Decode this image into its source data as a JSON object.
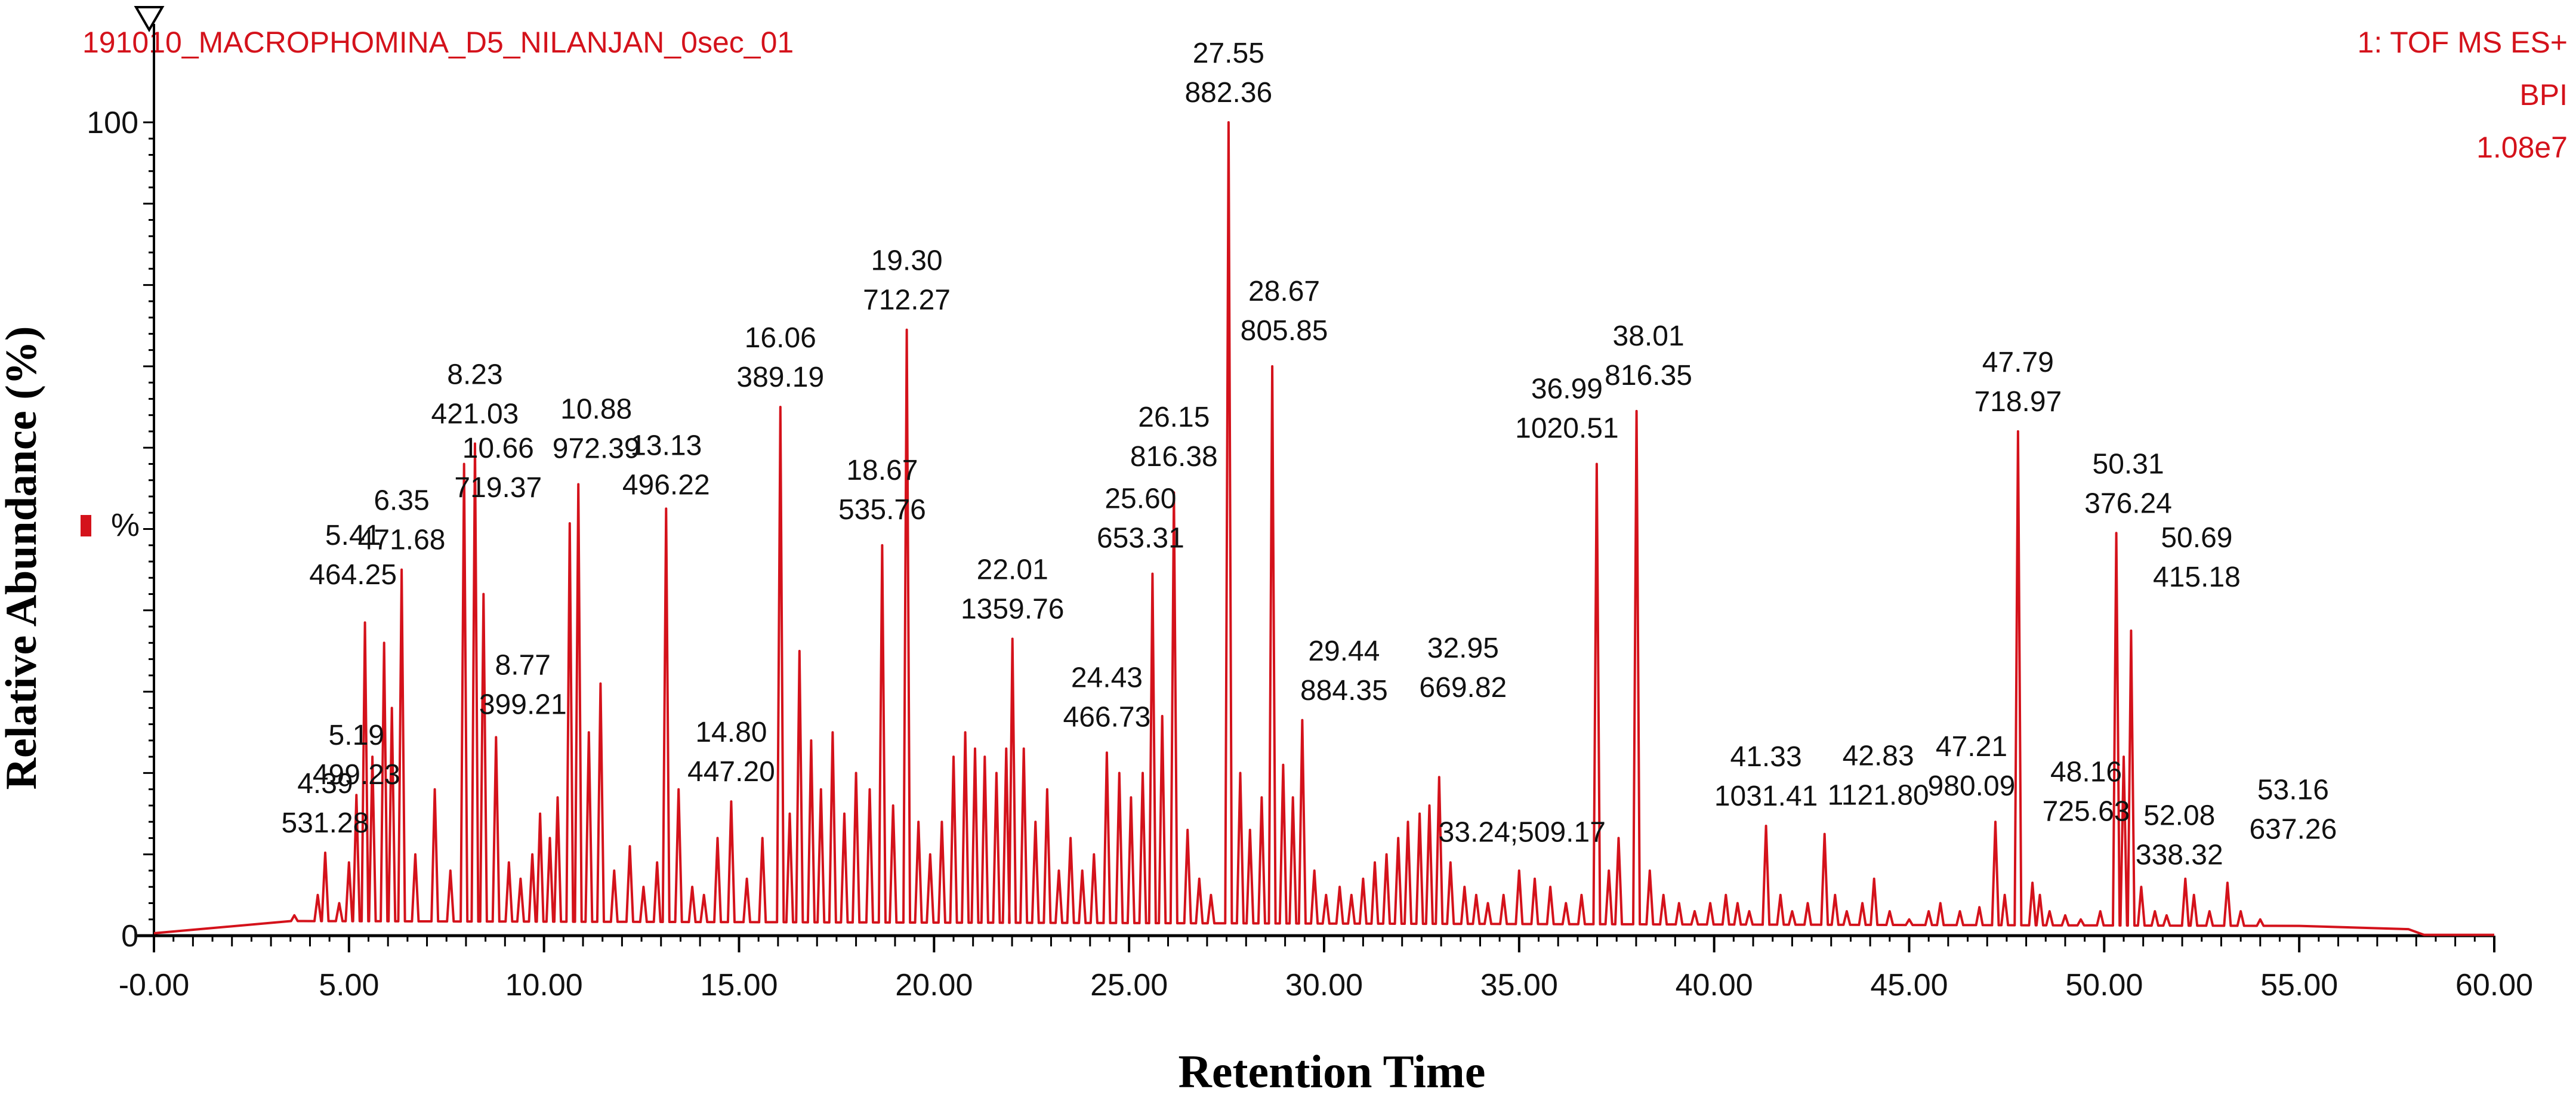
{
  "header": {
    "sample_name": "191010_MACROPHOMINA_D5_NILANJAN_0sec_01",
    "instrument_line": "1: TOF MS ES+",
    "mode_line": "BPI",
    "intensity_line": "1.08e7"
  },
  "axis_marker": {
    "percent_symbol": "%"
  },
  "colors": {
    "trace": "#d4121b",
    "header_text": "#d4121b",
    "axis": "#000000",
    "labels": "#111111"
  },
  "chart_data": {
    "type": "line",
    "title": "",
    "xlabel": "Retention Time",
    "ylabel": "Relative Abundance (%)",
    "xlim": [
      -0.5,
      60
    ],
    "ylim": [
      0,
      100
    ],
    "x_ticks": [
      "-0.00",
      "5.00",
      "10.00",
      "15.00",
      "20.00",
      "25.00",
      "30.00",
      "35.00",
      "40.00",
      "45.00",
      "50.00",
      "55.00",
      "60.00"
    ],
    "x_tick_values": [
      0,
      5,
      10,
      15,
      20,
      25,
      30,
      35,
      40,
      45,
      50,
      55,
      60
    ],
    "y_ticks": [
      "0",
      "100"
    ],
    "y_tick_values": [
      0,
      100
    ],
    "grid": false,
    "legend": "none",
    "baseline": [
      [
        0,
        0.3
      ],
      [
        2.8,
        0.5
      ],
      [
        3.3,
        1.5
      ],
      [
        3.6,
        1.8
      ],
      [
        55,
        1.2
      ],
      [
        57.8,
        0.8
      ],
      [
        58.2,
        0.1
      ],
      [
        60,
        0.1
      ]
    ],
    "peaks": [
      {
        "rt": 4.39,
        "mz": "531.28",
        "y": 10.2,
        "label": true
      },
      {
        "rt": 5.19,
        "mz": "499.23",
        "y": 17.3,
        "label": true
      },
      {
        "rt": 5.41,
        "mz": "464.25",
        "y": 38.5,
        "label": true
      },
      {
        "rt": 6.35,
        "mz": "471.68",
        "y": 45.0,
        "label": true
      },
      {
        "rt": 8.23,
        "mz": "421.03",
        "y": 60.5,
        "label": true
      },
      {
        "rt": 8.77,
        "mz": "399.21",
        "y": 24.4,
        "label": true
      },
      {
        "rt": 10.66,
        "mz": "719.37",
        "y": 50.7,
        "label": true
      },
      {
        "rt": 10.88,
        "mz": "972.39",
        "y": 55.5,
        "label": true
      },
      {
        "rt": 13.13,
        "mz": "496.22",
        "y": 52.5,
        "label": true
      },
      {
        "rt": 14.8,
        "mz": "447.20",
        "y": 16.5,
        "label": true
      },
      {
        "rt": 16.06,
        "mz": "389.19",
        "y": 65.0,
        "label": true
      },
      {
        "rt": 18.67,
        "mz": "535.76",
        "y": 48.0,
        "label": true
      },
      {
        "rt": 19.3,
        "mz": "712.27",
        "y": 74.5,
        "label": true
      },
      {
        "rt": 22.01,
        "mz": "1359.76",
        "y": 36.5,
        "label": true
      },
      {
        "rt": 24.43,
        "mz": "466.73",
        "y": 22.5,
        "label": true
      },
      {
        "rt": 25.6,
        "mz": "653.31",
        "y": 44.5,
        "label": true
      },
      {
        "rt": 26.15,
        "mz": "816.38",
        "y": 54.5,
        "label": true
      },
      {
        "rt": 27.55,
        "mz": "882.36",
        "y": 100.0,
        "label": true
      },
      {
        "rt": 28.67,
        "mz": "805.85",
        "y": 70.0,
        "label": true
      },
      {
        "rt": 29.44,
        "mz": "884.35",
        "y": 26.5,
        "label": true
      },
      {
        "rt": 32.95,
        "mz": "669.82",
        "y": 19.5,
        "label": true
      },
      {
        "rt": 33.24,
        "mz": "509.17",
        "y": 9.0,
        "label": true
      },
      {
        "rt": 36.99,
        "mz": "1020.51",
        "y": 58.0,
        "label": true
      },
      {
        "rt": 38.01,
        "mz": "816.35",
        "y": 64.5,
        "label": true
      },
      {
        "rt": 41.33,
        "mz": "1031.41",
        "y": 13.5,
        "label": true
      },
      {
        "rt": 42.83,
        "mz": "1121.80",
        "y": 12.5,
        "label": true
      },
      {
        "rt": 47.21,
        "mz": "980.09",
        "y": 14.0,
        "label": true
      },
      {
        "rt": 47.79,
        "mz": "718.97",
        "y": 62.0,
        "label": true
      },
      {
        "rt": 48.16,
        "mz": "725.63",
        "y": 6.5,
        "label": true
      },
      {
        "rt": 50.31,
        "mz": "376.24",
        "y": 49.5,
        "label": true
      },
      {
        "rt": 50.69,
        "mz": "415.18",
        "y": 37.5,
        "label": true
      },
      {
        "rt": 52.08,
        "mz": "338.32",
        "y": 7.0,
        "label": true
      },
      {
        "rt": 53.16,
        "mz": "637.26",
        "y": 6.5,
        "label": true
      },
      {
        "rt": 3.6,
        "y": 2.5
      },
      {
        "rt": 4.2,
        "y": 5
      },
      {
        "rt": 4.75,
        "y": 4
      },
      {
        "rt": 5.0,
        "y": 9
      },
      {
        "rt": 5.6,
        "y": 22
      },
      {
        "rt": 5.9,
        "y": 36
      },
      {
        "rt": 6.1,
        "y": 28
      },
      {
        "rt": 6.7,
        "y": 10
      },
      {
        "rt": 7.2,
        "y": 18
      },
      {
        "rt": 7.6,
        "y": 8
      },
      {
        "rt": 7.95,
        "y": 58
      },
      {
        "rt": 8.45,
        "y": 42
      },
      {
        "rt": 9.1,
        "y": 9
      },
      {
        "rt": 9.4,
        "y": 7
      },
      {
        "rt": 9.7,
        "y": 10
      },
      {
        "rt": 9.9,
        "y": 15
      },
      {
        "rt": 10.15,
        "y": 12
      },
      {
        "rt": 10.35,
        "y": 17
      },
      {
        "rt": 11.15,
        "y": 25
      },
      {
        "rt": 11.45,
        "y": 31
      },
      {
        "rt": 11.8,
        "y": 8
      },
      {
        "rt": 12.2,
        "y": 11
      },
      {
        "rt": 12.55,
        "y": 6
      },
      {
        "rt": 12.9,
        "y": 9
      },
      {
        "rt": 13.45,
        "y": 18
      },
      {
        "rt": 13.8,
        "y": 6
      },
      {
        "rt": 14.1,
        "y": 5
      },
      {
        "rt": 14.45,
        "y": 12
      },
      {
        "rt": 15.2,
        "y": 7
      },
      {
        "rt": 15.6,
        "y": 12
      },
      {
        "rt": 16.3,
        "y": 15
      },
      {
        "rt": 16.55,
        "y": 35
      },
      {
        "rt": 16.85,
        "y": 24
      },
      {
        "rt": 17.1,
        "y": 18
      },
      {
        "rt": 17.4,
        "y": 25
      },
      {
        "rt": 17.7,
        "y": 15
      },
      {
        "rt": 18.0,
        "y": 20
      },
      {
        "rt": 18.35,
        "y": 18
      },
      {
        "rt": 18.95,
        "y": 16
      },
      {
        "rt": 19.6,
        "y": 14
      },
      {
        "rt": 19.9,
        "y": 10
      },
      {
        "rt": 20.2,
        "y": 14
      },
      {
        "rt": 20.5,
        "y": 22
      },
      {
        "rt": 20.8,
        "y": 25
      },
      {
        "rt": 21.05,
        "y": 23
      },
      {
        "rt": 21.3,
        "y": 22
      },
      {
        "rt": 21.6,
        "y": 20
      },
      {
        "rt": 21.85,
        "y": 23
      },
      {
        "rt": 22.3,
        "y": 23
      },
      {
        "rt": 22.6,
        "y": 14
      },
      {
        "rt": 22.9,
        "y": 18
      },
      {
        "rt": 23.2,
        "y": 8
      },
      {
        "rt": 23.5,
        "y": 12
      },
      {
        "rt": 23.8,
        "y": 8
      },
      {
        "rt": 24.1,
        "y": 10
      },
      {
        "rt": 24.75,
        "y": 20
      },
      {
        "rt": 25.05,
        "y": 17
      },
      {
        "rt": 25.35,
        "y": 20
      },
      {
        "rt": 25.85,
        "y": 27
      },
      {
        "rt": 26.5,
        "y": 13
      },
      {
        "rt": 26.8,
        "y": 7
      },
      {
        "rt": 27.1,
        "y": 5
      },
      {
        "rt": 27.85,
        "y": 20
      },
      {
        "rt": 28.1,
        "y": 13
      },
      {
        "rt": 28.4,
        "y": 17
      },
      {
        "rt": 28.95,
        "y": 21
      },
      {
        "rt": 29.2,
        "y": 17
      },
      {
        "rt": 29.75,
        "y": 8
      },
      {
        "rt": 30.05,
        "y": 5
      },
      {
        "rt": 30.4,
        "y": 6
      },
      {
        "rt": 30.7,
        "y": 5
      },
      {
        "rt": 31.0,
        "y": 7
      },
      {
        "rt": 31.3,
        "y": 9
      },
      {
        "rt": 31.6,
        "y": 10
      },
      {
        "rt": 31.9,
        "y": 12
      },
      {
        "rt": 32.15,
        "y": 14
      },
      {
        "rt": 32.45,
        "y": 15
      },
      {
        "rt": 32.7,
        "y": 16
      },
      {
        "rt": 33.6,
        "y": 6
      },
      {
        "rt": 33.9,
        "y": 5
      },
      {
        "rt": 34.2,
        "y": 4
      },
      {
        "rt": 34.6,
        "y": 5
      },
      {
        "rt": 35.0,
        "y": 8
      },
      {
        "rt": 35.4,
        "y": 7
      },
      {
        "rt": 35.8,
        "y": 6
      },
      {
        "rt": 36.2,
        "y": 4
      },
      {
        "rt": 36.6,
        "y": 5
      },
      {
        "rt": 37.3,
        "y": 8
      },
      {
        "rt": 37.55,
        "y": 12
      },
      {
        "rt": 38.35,
        "y": 8
      },
      {
        "rt": 38.7,
        "y": 5
      },
      {
        "rt": 39.1,
        "y": 4
      },
      {
        "rt": 39.5,
        "y": 3
      },
      {
        "rt": 39.9,
        "y": 4
      },
      {
        "rt": 40.3,
        "y": 5
      },
      {
        "rt": 40.6,
        "y": 4
      },
      {
        "rt": 40.9,
        "y": 3
      },
      {
        "rt": 41.7,
        "y": 5
      },
      {
        "rt": 42.0,
        "y": 3
      },
      {
        "rt": 42.4,
        "y": 4
      },
      {
        "rt": 43.1,
        "y": 5
      },
      {
        "rt": 43.4,
        "y": 3
      },
      {
        "rt": 43.8,
        "y": 4
      },
      {
        "rt": 44.1,
        "y": 7
      },
      {
        "rt": 44.5,
        "y": 3
      },
      {
        "rt": 45.0,
        "y": 2
      },
      {
        "rt": 45.5,
        "y": 3
      },
      {
        "rt": 45.8,
        "y": 4
      },
      {
        "rt": 46.3,
        "y": 3
      },
      {
        "rt": 46.8,
        "y": 3.5
      },
      {
        "rt": 47.45,
        "y": 5
      },
      {
        "rt": 48.35,
        "y": 5
      },
      {
        "rt": 48.6,
        "y": 3
      },
      {
        "rt": 49.0,
        "y": 2.5
      },
      {
        "rt": 49.4,
        "y": 2
      },
      {
        "rt": 49.9,
        "y": 3
      },
      {
        "rt": 50.5,
        "y": 22
      },
      {
        "rt": 50.95,
        "y": 6
      },
      {
        "rt": 51.3,
        "y": 3
      },
      {
        "rt": 51.6,
        "y": 2.5
      },
      {
        "rt": 52.3,
        "y": 5
      },
      {
        "rt": 52.7,
        "y": 3
      },
      {
        "rt": 53.5,
        "y": 3
      },
      {
        "rt": 54.0,
        "y": 2
      }
    ]
  }
}
